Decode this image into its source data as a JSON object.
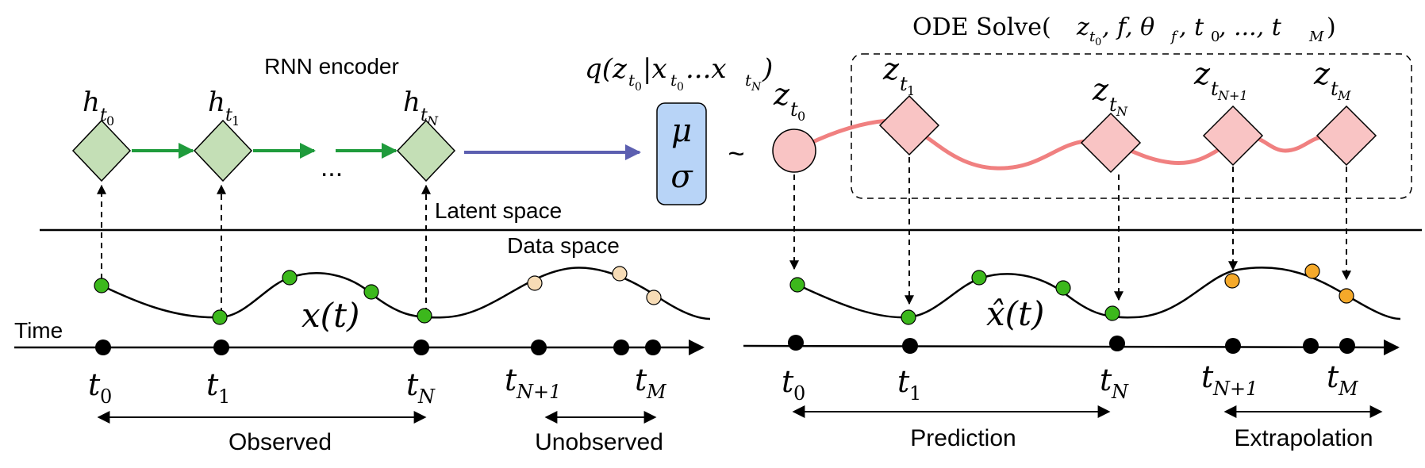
{
  "encoder": {
    "title": "RNN encoder",
    "hidden_states": [
      {
        "base": "h",
        "sub": "t",
        "subsub": "0"
      },
      {
        "base": "h",
        "sub": "t",
        "subsub": "1"
      },
      {
        "base": "h",
        "sub": "t",
        "subsub": "N"
      }
    ],
    "ellipsis": "...",
    "posterior": {
      "q": "q(z",
      "t0": "t",
      "sub0": "0",
      "cond": "|x",
      "x0sub": "t",
      "x0subsub": "0",
      "dots": "...x",
      "xN": "t",
      "xNsub": "N",
      "close": ")"
    }
  },
  "distribution": {
    "mu": "μ",
    "sigma": "σ",
    "tilde": "~"
  },
  "solver": {
    "label_prefix": "ODE Solve(",
    "label_args": [
      "z",
      "t",
      "0",
      ", f, θ",
      "f",
      ", t",
      "0",
      ", ..., t",
      "M",
      ")"
    ]
  },
  "latent": {
    "z0": {
      "base": "z",
      "sub": "t",
      "subsub": "0"
    },
    "states": [
      {
        "base": "z",
        "sub": "t",
        "subsub": "1"
      },
      {
        "base": "z",
        "sub": "t",
        "subsub": "N"
      },
      {
        "base": "z",
        "sub": "t",
        "subsub": "N+1"
      },
      {
        "base": "z",
        "sub": "t",
        "subsub": "M"
      }
    ]
  },
  "spaces": {
    "latent": "Latent space",
    "data": "Data space"
  },
  "left_panel": {
    "time_label": "Time",
    "curve_label": "x(t)",
    "ticks": [
      {
        "base": "t",
        "sub": "0"
      },
      {
        "base": "t",
        "sub": "1"
      },
      {
        "base": "t",
        "sub": "N"
      },
      {
        "base": "t",
        "sub": "N+1"
      },
      {
        "base": "t",
        "sub": "M"
      }
    ],
    "ranges": {
      "observed": "Observed",
      "unobserved": "Unobserved"
    }
  },
  "right_panel": {
    "curve_label": "x̂(t)",
    "ticks": [
      {
        "base": "t",
        "sub": "0"
      },
      {
        "base": "t",
        "sub": "1"
      },
      {
        "base": "t",
        "sub": "N"
      },
      {
        "base": "t",
        "sub": "N+1"
      },
      {
        "base": "t",
        "sub": "M"
      }
    ],
    "ranges": {
      "prediction": "Prediction",
      "extrapolation": "Extrapolation"
    }
  },
  "colors": {
    "green_node": "#c4dfb6",
    "green_arrow": "#1f9b3c",
    "green_dot": "#3cb81c",
    "blue_arrow": "#5c5fb0",
    "mu_box": "#b8d4f7",
    "pink_node": "#f9c4c4",
    "pink_curve": "#f08080",
    "orange_dot": "#f5a92a",
    "faded_dot": "#f7dcb6"
  }
}
